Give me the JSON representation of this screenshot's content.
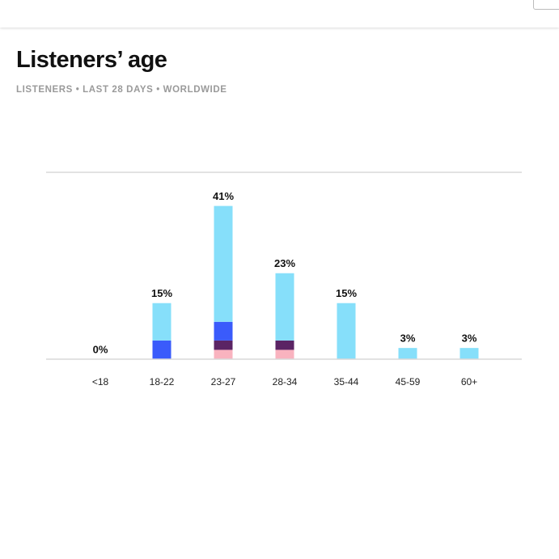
{
  "header": {
    "title": "Listeners’ age",
    "subtitle": "LISTENERS • LAST 28 DAYS • WORLDWIDE"
  },
  "chart_data": {
    "type": "stacked-bar",
    "categories": [
      "<18",
      "18-22",
      "23-27",
      "28-34",
      "35-44",
      "45-59",
      "60+"
    ],
    "series": [
      {
        "color": "#f9b3bf",
        "values": [
          0,
          0,
          2.5,
          2.5,
          0,
          0,
          0
        ]
      },
      {
        "color": "#5b2464",
        "values": [
          0,
          0,
          2.5,
          2.5,
          0,
          0,
          0
        ]
      },
      {
        "color": "#3a5bfb",
        "values": [
          0,
          5,
          5,
          0,
          0,
          0,
          0
        ]
      },
      {
        "color": "#86dffa",
        "values": [
          0,
          10,
          31,
          18,
          15,
          3,
          3
        ]
      }
    ],
    "totals": [
      0,
      15,
      41,
      23,
      15,
      3,
      3
    ],
    "total_labels": [
      "0%",
      "15%",
      "41%",
      "23%",
      "15%",
      "3%",
      "3%"
    ],
    "ylim": [
      0,
      50
    ]
  }
}
